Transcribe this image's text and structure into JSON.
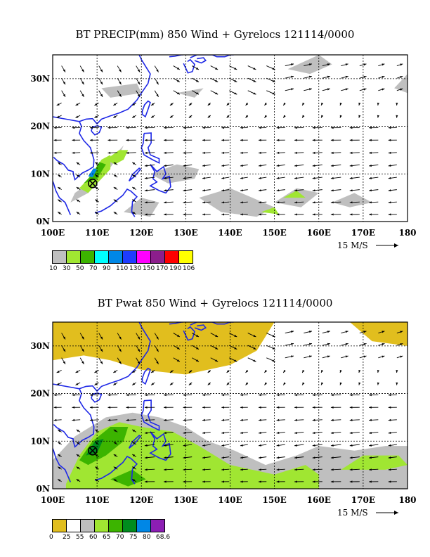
{
  "panels": [
    {
      "title": "BT PRECIP(mm) 850 Wind + Gyrelocs 121114/0000",
      "y_labels": [
        "30N",
        "20N",
        "10N",
        "0N"
      ],
      "x_labels": [
        "100E",
        "110E",
        "120E",
        "130E",
        "140E",
        "150E",
        "160E",
        "170E",
        "180"
      ],
      "scale_text": "15 M/S",
      "legend_labels": [
        "10",
        "30",
        "50",
        "70",
        "90",
        "110",
        "130",
        "150",
        "170",
        "190",
        "106"
      ],
      "legend_colors": [
        "#bfbfbf",
        "#a0e632",
        "#3cb400",
        "#00ffff",
        "#0087e6",
        "#1e3cff",
        "#ff00ff",
        "#8c1e8c",
        "#ff0000",
        "#ffff00"
      ]
    },
    {
      "title": "BT Pwat 850 Wind + Gyrelocs 121114/0000",
      "y_labels": [
        "30N",
        "20N",
        "10N",
        "0N"
      ],
      "x_labels": [
        "100E",
        "110E",
        "120E",
        "130E",
        "140E",
        "150E",
        "160E",
        "170E",
        "180"
      ],
      "scale_text": "15 M/S",
      "legend_labels": [
        "0",
        "25",
        "55",
        "60",
        "65",
        "70",
        "75",
        "80",
        "68.6"
      ],
      "legend_colors": [
        "#e1be1e",
        "#ffffff",
        "#bfbfbf",
        "#a0e632",
        "#3cb400",
        "#008c1e",
        "#0087e6",
        "#8c1eb4"
      ]
    }
  ],
  "storm_marker": {
    "icon": "circle-x-icon",
    "lon": 109,
    "lat": 8
  }
}
